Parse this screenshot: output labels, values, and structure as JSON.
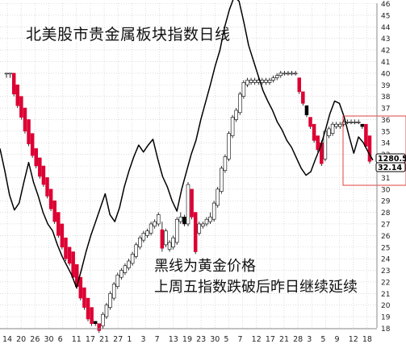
{
  "title": "北美股市贵金属板块指数日线",
  "annotations": {
    "line1": "黑线为黄金价格",
    "line2": "上周五指数跌破后昨日继续延续"
  },
  "price_labels": {
    "index_last": "1280.5",
    "gold_last": "32.14"
  },
  "colors": {
    "up_candle": "#ffffff",
    "down_red": "#dd0033",
    "down_black": "#000000",
    "gold_line": "#000000",
    "grid": "#c8c8c8",
    "highlight_box": "#e04040"
  },
  "chart_data": {
    "type": "line",
    "title": "北美股市贵金属板块指数日线",
    "y_axis": {
      "min": 18,
      "max": 46,
      "step": 1,
      "side": "right"
    },
    "x_tick_labels": [
      "14",
      "20",
      "26",
      "30",
      "6",
      "11",
      "17",
      "21",
      "27",
      "1",
      "3",
      "7",
      "13",
      "19",
      "23",
      "30",
      "5",
      "7",
      "12",
      "17",
      "21",
      "28",
      "3",
      "5",
      "9",
      "12",
      "18"
    ],
    "series": [
      {
        "type": "line",
        "values": [
          33.5,
          31.6,
          29.5,
          28.2,
          28.8,
          30.6,
          32.3,
          30.6,
          29.4,
          28.0,
          27.0,
          26.4,
          25.2,
          24.2,
          23.4,
          22.6,
          21.5,
          23.0,
          24.6,
          26.0,
          27.2,
          28.4,
          29.6,
          27.8,
          27.2,
          28.4,
          30.2,
          31.6,
          32.8,
          33.8,
          33.2,
          33.8,
          34.3,
          32.6,
          31.1,
          30.2,
          29.0,
          28.1,
          30.0,
          31.5,
          33.0,
          34.2,
          36.0,
          37.5,
          39.0,
          40.6,
          42.0,
          44.0,
          45.5,
          46.6,
          46.2,
          44.4,
          42.4,
          41.1,
          39.8,
          38.5,
          37.6,
          36.8,
          35.8,
          35.1,
          34.2,
          33.6,
          32.7,
          31.8,
          31.2,
          31.5,
          32.6,
          33.6,
          35.0,
          36.5,
          37.6,
          37.4,
          36.2,
          34.6,
          33.1,
          34.5,
          34.0,
          33.2,
          32.5
        ]
      },
      {
        "type": "candlestick",
        "ohlc": [
          [
            40,
            40,
            39.6,
            40
          ],
          [
            40,
            40,
            39.6,
            40
          ],
          [
            40,
            40,
            38,
            38.2
          ],
          [
            39,
            39,
            37,
            37.2
          ],
          [
            38,
            38,
            36,
            36.2
          ],
          [
            37,
            37,
            34.8,
            35
          ],
          [
            36,
            36,
            33.7,
            33.9
          ],
          [
            34.8,
            34.8,
            32.7,
            32.9
          ],
          [
            33.5,
            33.5,
            31.8,
            32
          ],
          [
            32.7,
            32.7,
            30.9,
            31.1
          ],
          [
            32,
            32,
            30.2,
            30.4
          ],
          [
            31,
            31,
            29.2,
            29.4
          ],
          [
            30,
            30,
            28.1,
            28.3
          ],
          [
            29,
            29,
            27,
            27.2
          ],
          [
            28,
            28,
            25.8,
            26
          ],
          [
            27,
            27,
            24.8,
            25
          ],
          [
            25.8,
            25.8,
            23.8,
            24
          ],
          [
            25,
            25,
            23.4,
            23.6
          ],
          [
            24.6,
            24.6,
            22.2,
            22.4
          ],
          [
            23.5,
            23.5,
            21.4,
            21.6
          ],
          [
            22.4,
            22.4,
            20.4,
            20.6
          ],
          [
            21.5,
            21.5,
            19.6,
            19.8
          ],
          [
            20.6,
            20.6,
            18.6,
            18.8
          ],
          [
            19.8,
            19.8,
            18.2,
            18.4
          ],
          [
            18.6,
            18.6,
            18.2,
            18.4
          ],
          [
            18.4,
            18.4,
            17.6,
            17.8
          ],
          [
            18.2,
            19.4,
            18,
            19.2
          ],
          [
            19,
            20.2,
            18.8,
            20
          ],
          [
            19.8,
            21.2,
            19.6,
            21
          ],
          [
            20.6,
            22,
            20.4,
            21.8
          ],
          [
            21.6,
            22.8,
            21.4,
            22.6
          ],
          [
            22.4,
            23.2,
            22.2,
            23
          ],
          [
            22.8,
            23.6,
            22.6,
            23.4
          ],
          [
            23.2,
            24,
            23,
            23.8
          ],
          [
            23.6,
            24.6,
            23.4,
            24.4
          ],
          [
            24.2,
            25.4,
            24,
            25.2
          ],
          [
            25,
            26,
            24.8,
            25.8
          ],
          [
            25.6,
            26.4,
            25.4,
            26.2
          ],
          [
            26,
            26.6,
            25.8,
            26.4
          ],
          [
            26.2,
            27.2,
            26,
            27
          ],
          [
            26.8,
            27.4,
            26.6,
            27.2
          ],
          [
            27,
            28,
            26.8,
            27.8
          ],
          [
            26.5,
            27.2,
            24.6,
            24.9
          ],
          [
            25.2,
            26.6,
            25,
            26.4
          ],
          [
            24.8,
            25.6,
            24.6,
            25.4
          ],
          [
            25,
            26,
            24.8,
            25.8
          ],
          [
            25.4,
            27.6,
            25.2,
            27.4
          ],
          [
            27.2,
            28,
            27,
            27.6
          ],
          [
            27.6,
            27.8,
            26.8,
            27
          ],
          [
            27,
            30.6,
            26.8,
            30.4
          ],
          [
            30,
            30,
            27.4,
            27.6
          ],
          [
            28,
            28,
            24.4,
            24.6
          ],
          [
            26.2,
            27.2,
            26,
            27
          ],
          [
            26.8,
            27.2,
            26.6,
            27
          ],
          [
            27,
            27.6,
            26.8,
            27.4
          ],
          [
            27.2,
            28,
            27,
            27.6
          ],
          [
            27.4,
            29,
            27.2,
            28.8
          ],
          [
            28.6,
            30.2,
            28.4,
            30
          ],
          [
            29.8,
            32,
            29.6,
            31.8
          ],
          [
            31.6,
            33,
            31.4,
            32.8
          ],
          [
            32.6,
            35,
            32.4,
            34.8
          ],
          [
            34.6,
            36.4,
            34.4,
            36.2
          ],
          [
            36,
            37,
            35.8,
            36.8
          ],
          [
            36.6,
            38.4,
            36.4,
            38.2
          ],
          [
            38,
            39.4,
            37.8,
            39.2
          ],
          [
            39,
            39.6,
            38.8,
            39.4
          ],
          [
            39.2,
            39.6,
            39,
            39.4
          ],
          [
            39.2,
            39.6,
            39,
            39.4
          ],
          [
            39.2,
            39.6,
            39,
            39.4
          ],
          [
            39.2,
            39.6,
            39,
            39.4
          ],
          [
            39.2,
            39.6,
            39,
            39.4
          ],
          [
            39.2,
            39.6,
            39,
            39.4
          ],
          [
            39.4,
            39.8,
            39.2,
            39.6
          ],
          [
            39.6,
            40,
            39.4,
            39.8
          ],
          [
            39.8,
            40.2,
            39.6,
            40
          ],
          [
            40,
            40.2,
            39.8,
            40
          ],
          [
            40,
            40.2,
            39.8,
            40
          ],
          [
            40,
            40.2,
            39.8,
            40
          ],
          [
            40,
            40.2,
            39.8,
            40
          ],
          [
            39.6,
            39.6,
            38.2,
            38.4
          ],
          [
            38.4,
            38.4,
            37.2,
            37.4
          ],
          [
            37.2,
            37.2,
            36.2,
            36.4
          ],
          [
            36.2,
            36.2,
            35.2,
            35.4
          ],
          [
            35.6,
            35.6,
            34,
            34.2
          ],
          [
            34.6,
            34.6,
            33.2,
            33.4
          ],
          [
            34,
            34.2,
            32,
            32.2
          ],
          [
            32.6,
            35.2,
            32.4,
            35
          ],
          [
            34.6,
            35.4,
            34.4,
            35.2
          ],
          [
            34.8,
            35.8,
            34.6,
            35.6
          ],
          [
            35.4,
            35.8,
            35.2,
            35.6
          ],
          [
            35.4,
            35.8,
            35.2,
            35.6
          ],
          [
            35.6,
            36,
            35.4,
            35.8
          ],
          [
            35.8,
            36,
            35.6,
            35.8
          ],
          [
            35.8,
            36,
            35.6,
            35.8
          ],
          [
            35.8,
            36,
            35.6,
            35.8
          ],
          [
            35.8,
            36,
            35.6,
            35.8
          ],
          [
            35.6,
            35.6,
            35.2,
            35.4
          ],
          [
            35.6,
            35.6,
            33.5,
            33.7
          ],
          [
            34.6,
            34.6,
            32.2,
            32.4
          ]
        ]
      }
    ],
    "price_labels": [
      "1280.5",
      "32.14"
    ]
  }
}
